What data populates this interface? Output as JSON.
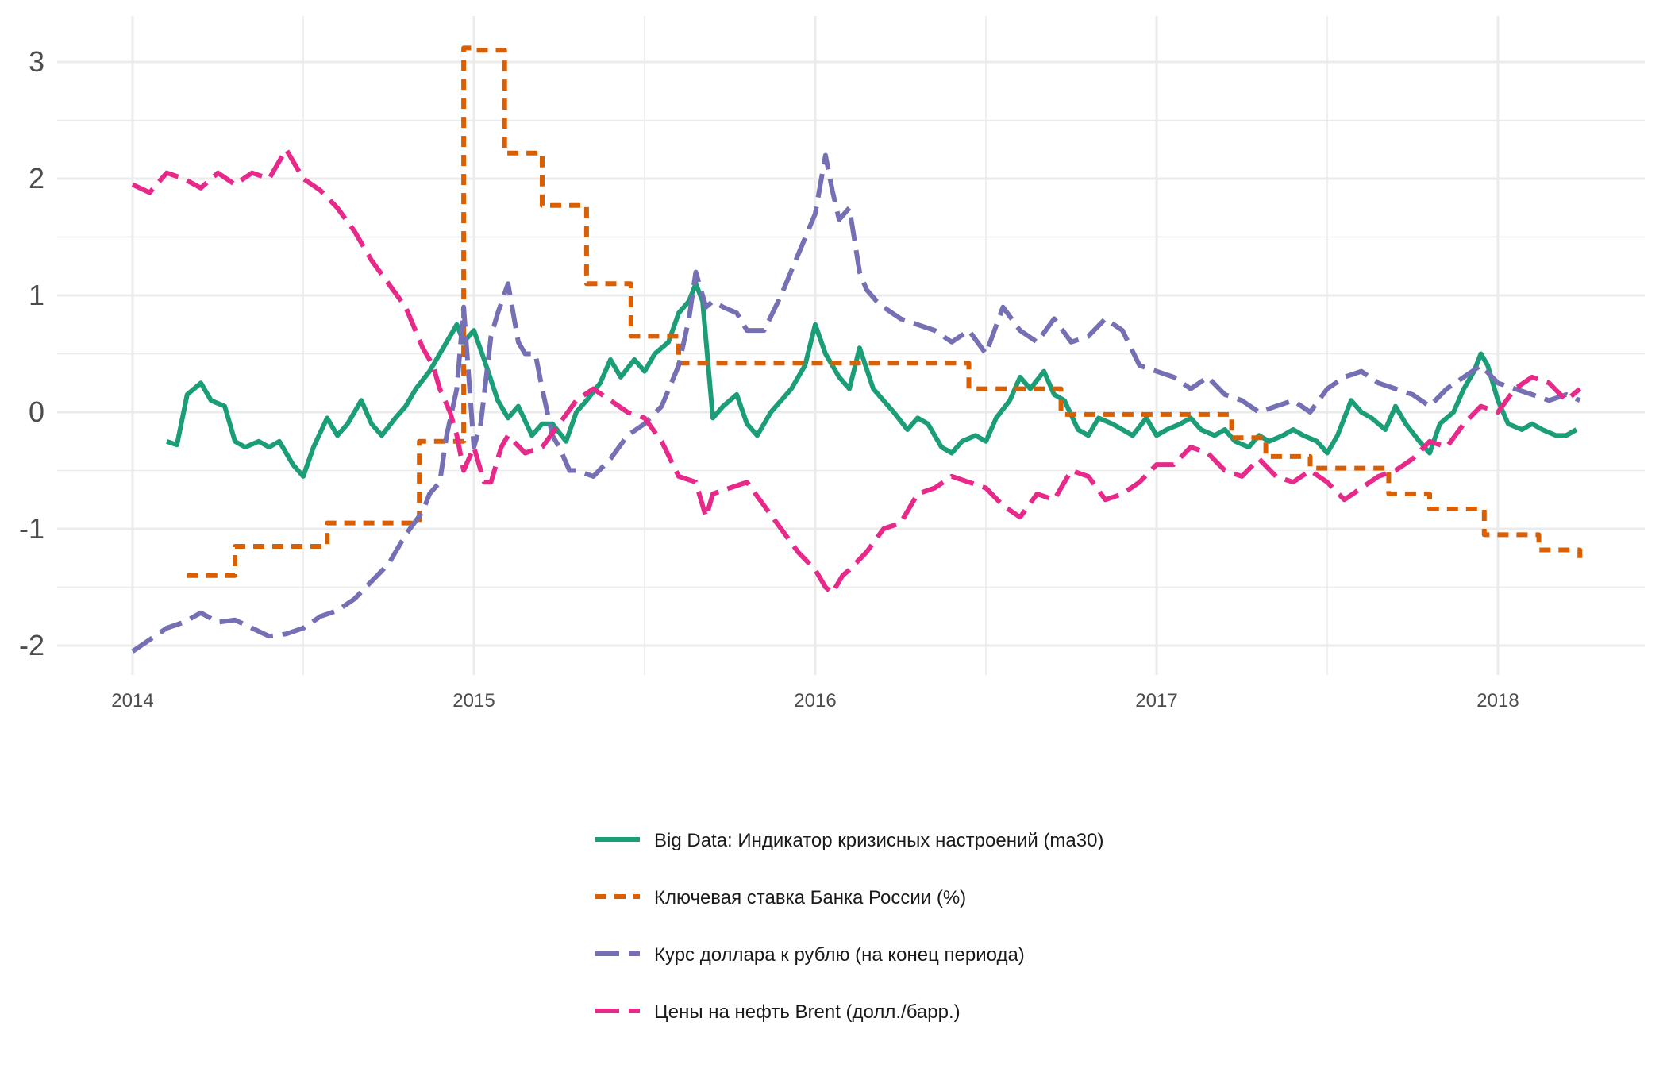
{
  "chart_data": {
    "type": "line",
    "title": "",
    "xlabel": "",
    "ylabel": "",
    "xlim": [
      2014.0,
      2018.5
    ],
    "ylim": [
      -2.3,
      3.4
    ],
    "x_ticks": [
      {
        "value": 2014,
        "label": "2014"
      },
      {
        "value": 2015,
        "label": "2015"
      },
      {
        "value": 2016,
        "label": "2016"
      },
      {
        "value": 2017,
        "label": "2017"
      },
      {
        "value": 2018,
        "label": "2018"
      }
    ],
    "y_ticks": [
      {
        "value": -2,
        "label": "-2"
      },
      {
        "value": -1,
        "label": "-1"
      },
      {
        "value": 0,
        "label": "0"
      },
      {
        "value": 1,
        "label": "1"
      },
      {
        "value": 2,
        "label": "2"
      },
      {
        "value": 3,
        "label": "3"
      }
    ],
    "grid": true,
    "legend_position": "bottom",
    "series": [
      {
        "name": "Big Data: Индикатор кризисных настроений (ma30)",
        "color": "#1b9e77",
        "dash": "solid",
        "x": [
          2014.1,
          2014.13,
          2014.16,
          2014.2,
          2014.23,
          2014.27,
          2014.3,
          2014.33,
          2014.37,
          2014.4,
          2014.43,
          2014.47,
          2014.5,
          2014.53,
          2014.57,
          2014.6,
          2014.63,
          2014.67,
          2014.7,
          2014.73,
          2014.77,
          2014.8,
          2014.83,
          2014.87,
          2014.9,
          2014.92,
          2014.95,
          2014.97,
          2015.0,
          2015.03,
          2015.07,
          2015.1,
          2015.13,
          2015.17,
          2015.2,
          2015.23,
          2015.27,
          2015.3,
          2015.33,
          2015.37,
          2015.4,
          2015.43,
          2015.47,
          2015.5,
          2015.53,
          2015.57,
          2015.6,
          2015.63,
          2015.65,
          2015.67,
          2015.7,
          2015.73,
          2015.77,
          2015.8,
          2015.83,
          2015.87,
          2015.9,
          2015.93,
          2015.97,
          2016.0,
          2016.03,
          2016.07,
          2016.1,
          2016.13,
          2016.17,
          2016.2,
          2016.23,
          2016.27,
          2016.3,
          2016.33,
          2016.37,
          2016.4,
          2016.43,
          2016.47,
          2016.5,
          2016.53,
          2016.57,
          2016.6,
          2016.63,
          2016.67,
          2016.7,
          2016.73,
          2016.77,
          2016.8,
          2016.83,
          2016.87,
          2016.9,
          2016.93,
          2016.97,
          2017.0,
          2017.03,
          2017.07,
          2017.1,
          2017.13,
          2017.17,
          2017.2,
          2017.23,
          2017.27,
          2017.3,
          2017.33,
          2017.37,
          2017.4,
          2017.43,
          2017.47,
          2017.5,
          2017.53,
          2017.57,
          2017.6,
          2017.63,
          2017.67,
          2017.7,
          2017.73,
          2017.77,
          2017.8,
          2017.83,
          2017.87,
          2017.9,
          2017.93,
          2017.95,
          2017.97,
          2018.0,
          2018.03,
          2018.07,
          2018.1,
          2018.13,
          2018.17,
          2018.2,
          2018.23
        ],
        "values": [
          -0.25,
          -0.28,
          0.15,
          0.25,
          0.1,
          0.05,
          -0.25,
          -0.3,
          -0.25,
          -0.3,
          -0.25,
          -0.45,
          -0.55,
          -0.3,
          -0.05,
          -0.2,
          -0.1,
          0.1,
          -0.1,
          -0.2,
          -0.05,
          0.05,
          0.2,
          0.35,
          0.5,
          0.6,
          0.75,
          0.6,
          0.7,
          0.45,
          0.1,
          -0.05,
          0.05,
          -0.2,
          -0.1,
          -0.1,
          -0.25,
          0.0,
          0.1,
          0.25,
          0.45,
          0.3,
          0.45,
          0.35,
          0.5,
          0.6,
          0.85,
          0.95,
          1.1,
          0.95,
          -0.05,
          0.05,
          0.15,
          -0.1,
          -0.2,
          0.0,
          0.1,
          0.2,
          0.4,
          0.75,
          0.5,
          0.3,
          0.2,
          0.55,
          0.2,
          0.1,
          0.0,
          -0.15,
          -0.05,
          -0.1,
          -0.3,
          -0.35,
          -0.25,
          -0.2,
          -0.25,
          -0.05,
          0.1,
          0.3,
          0.2,
          0.35,
          0.15,
          0.1,
          -0.15,
          -0.2,
          -0.05,
          -0.1,
          -0.15,
          -0.2,
          -0.05,
          -0.2,
          -0.15,
          -0.1,
          -0.05,
          -0.15,
          -0.2,
          -0.15,
          -0.25,
          -0.3,
          -0.2,
          -0.25,
          -0.2,
          -0.15,
          -0.2,
          -0.25,
          -0.35,
          -0.2,
          0.1,
          0.0,
          -0.05,
          -0.15,
          0.05,
          -0.1,
          -0.25,
          -0.35,
          -0.1,
          0.0,
          0.2,
          0.35,
          0.5,
          0.4,
          0.1,
          -0.1,
          -0.15,
          -0.1,
          -0.15,
          -0.2,
          -0.2,
          -0.15
        ]
      },
      {
        "name": "Ключевая ставка Банка России (%)",
        "color": "#d95f02",
        "dash": "dashed",
        "x": [
          2014.16,
          2014.3,
          2014.3,
          2014.57,
          2014.57,
          2014.84,
          2014.84,
          2014.97,
          2014.97,
          2015.0,
          2015.0,
          2015.09,
          2015.09,
          2015.2,
          2015.2,
          2015.33,
          2015.33,
          2015.46,
          2015.46,
          2015.6,
          2015.6,
          2016.45,
          2016.45,
          2016.72,
          2016.72,
          2017.22,
          2017.22,
          2017.32,
          2017.32,
          2017.45,
          2017.45,
          2017.68,
          2017.68,
          2017.8,
          2017.8,
          2017.96,
          2017.96,
          2018.12,
          2018.12,
          2018.24,
          2018.24
        ],
        "values": [
          -1.4,
          -1.4,
          -1.15,
          -1.15,
          -0.95,
          -0.95,
          -0.25,
          -0.25,
          3.12,
          3.12,
          3.1,
          3.1,
          2.22,
          2.22,
          1.77,
          1.77,
          1.1,
          1.1,
          0.65,
          0.65,
          0.42,
          0.42,
          0.2,
          0.2,
          -0.02,
          -0.02,
          -0.22,
          -0.22,
          -0.38,
          -0.38,
          -0.48,
          -0.48,
          -0.7,
          -0.7,
          -0.83,
          -0.83,
          -1.05,
          -1.05,
          -1.18,
          -1.18,
          -1.25
        ]
      },
      {
        "name": "Курс доллара к рублю (на конец периода)",
        "color": "#7570b3",
        "dash": "longdash",
        "x": [
          2014.0,
          2014.05,
          2014.1,
          2014.15,
          2014.2,
          2014.25,
          2014.3,
          2014.35,
          2014.4,
          2014.45,
          2014.5,
          2014.55,
          2014.6,
          2014.65,
          2014.7,
          2014.75,
          2014.8,
          2014.85,
          2014.87,
          2014.9,
          2014.92,
          2014.95,
          2014.97,
          2015.0,
          2015.02,
          2015.05,
          2015.07,
          2015.1,
          2015.13,
          2015.15,
          2015.18,
          2015.2,
          2015.23,
          2015.25,
          2015.28,
          2015.3,
          2015.35,
          2015.4,
          2015.45,
          2015.5,
          2015.55,
          2015.6,
          2015.63,
          2015.65,
          2015.68,
          2015.7,
          2015.73,
          2015.77,
          2015.8,
          2015.85,
          2015.9,
          2015.95,
          2016.0,
          2016.03,
          2016.05,
          2016.07,
          2016.1,
          2016.13,
          2016.15,
          2016.18,
          2016.2,
          2016.25,
          2016.3,
          2016.35,
          2016.4,
          2016.45,
          2016.5,
          2016.55,
          2016.6,
          2016.65,
          2016.7,
          2016.75,
          2016.8,
          2016.85,
          2016.9,
          2016.95,
          2017.0,
          2017.05,
          2017.1,
          2017.15,
          2017.2,
          2017.25,
          2017.3,
          2017.35,
          2017.4,
          2017.45,
          2017.5,
          2017.55,
          2017.6,
          2017.65,
          2017.7,
          2017.75,
          2017.8,
          2017.85,
          2017.9,
          2017.95,
          2018.0,
          2018.05,
          2018.1,
          2018.15,
          2018.2,
          2018.24
        ],
        "values": [
          -2.05,
          -1.95,
          -1.85,
          -1.8,
          -1.72,
          -1.8,
          -1.78,
          -1.85,
          -1.92,
          -1.9,
          -1.85,
          -1.75,
          -1.7,
          -1.6,
          -1.45,
          -1.3,
          -1.05,
          -0.85,
          -0.7,
          -0.6,
          -0.2,
          0.2,
          0.9,
          -0.3,
          -0.1,
          0.65,
          0.85,
          1.1,
          0.6,
          0.5,
          0.5,
          0.2,
          -0.2,
          -0.3,
          -0.5,
          -0.5,
          -0.55,
          -0.4,
          -0.2,
          -0.1,
          0.05,
          0.4,
          0.8,
          1.2,
          0.9,
          0.95,
          0.9,
          0.85,
          0.7,
          0.7,
          1.0,
          1.35,
          1.7,
          2.2,
          1.9,
          1.65,
          1.75,
          1.2,
          1.05,
          0.95,
          0.9,
          0.8,
          0.75,
          0.7,
          0.6,
          0.7,
          0.5,
          0.9,
          0.7,
          0.6,
          0.8,
          0.6,
          0.65,
          0.8,
          0.7,
          0.4,
          0.35,
          0.3,
          0.2,
          0.3,
          0.15,
          0.1,
          0.0,
          0.05,
          0.1,
          0.0,
          0.2,
          0.3,
          0.35,
          0.25,
          0.2,
          0.15,
          0.05,
          0.2,
          0.3,
          0.4,
          0.25,
          0.2,
          0.15,
          0.1,
          0.15,
          0.1
        ]
      },
      {
        "name": "Цены на нефть Brent (долл./барр.)",
        "color": "#e7298a",
        "dash": "longdash",
        "x": [
          2014.0,
          2014.05,
          2014.1,
          2014.15,
          2014.2,
          2014.25,
          2014.3,
          2014.35,
          2014.4,
          2014.45,
          2014.48,
          2014.5,
          2014.55,
          2014.6,
          2014.65,
          2014.7,
          2014.75,
          2014.8,
          2014.85,
          2014.88,
          2014.9,
          2014.93,
          2014.95,
          2014.97,
          2015.0,
          2015.03,
          2015.05,
          2015.08,
          2015.1,
          2015.15,
          2015.2,
          2015.25,
          2015.3,
          2015.35,
          2015.4,
          2015.45,
          2015.5,
          2015.55,
          2015.6,
          2015.65,
          2015.68,
          2015.7,
          2015.75,
          2015.8,
          2015.85,
          2015.9,
          2015.95,
          2016.0,
          2016.03,
          2016.05,
          2016.08,
          2016.1,
          2016.15,
          2016.2,
          2016.25,
          2016.3,
          2016.35,
          2016.4,
          2016.45,
          2016.5,
          2016.55,
          2016.6,
          2016.65,
          2016.7,
          2016.75,
          2016.8,
          2016.85,
          2016.9,
          2016.95,
          2017.0,
          2017.05,
          2017.1,
          2017.15,
          2017.2,
          2017.25,
          2017.3,
          2017.35,
          2017.4,
          2017.45,
          2017.5,
          2017.55,
          2017.6,
          2017.65,
          2017.7,
          2017.75,
          2017.8,
          2017.85,
          2017.9,
          2017.95,
          2018.0,
          2018.05,
          2018.1,
          2018.15,
          2018.2,
          2018.24
        ],
        "values": [
          1.95,
          1.88,
          2.05,
          2.0,
          1.92,
          2.05,
          1.95,
          2.05,
          2.0,
          2.25,
          2.1,
          2.0,
          1.9,
          1.75,
          1.55,
          1.3,
          1.1,
          0.9,
          0.55,
          0.4,
          0.2,
          0.0,
          -0.2,
          -0.5,
          -0.3,
          -0.6,
          -0.6,
          -0.3,
          -0.2,
          -0.35,
          -0.3,
          -0.1,
          0.1,
          0.2,
          0.1,
          0.0,
          -0.05,
          -0.25,
          -0.55,
          -0.6,
          -0.9,
          -0.7,
          -0.65,
          -0.6,
          -0.8,
          -1.0,
          -1.2,
          -1.35,
          -1.5,
          -1.55,
          -1.4,
          -1.35,
          -1.2,
          -1.0,
          -0.95,
          -0.7,
          -0.65,
          -0.55,
          -0.6,
          -0.65,
          -0.8,
          -0.9,
          -0.7,
          -0.75,
          -0.5,
          -0.55,
          -0.75,
          -0.7,
          -0.6,
          -0.45,
          -0.45,
          -0.3,
          -0.35,
          -0.5,
          -0.55,
          -0.4,
          -0.55,
          -0.6,
          -0.5,
          -0.6,
          -0.75,
          -0.65,
          -0.55,
          -0.5,
          -0.4,
          -0.25,
          -0.3,
          -0.1,
          0.05,
          0.0,
          0.2,
          0.3,
          0.25,
          0.1,
          0.2
        ]
      }
    ]
  }
}
